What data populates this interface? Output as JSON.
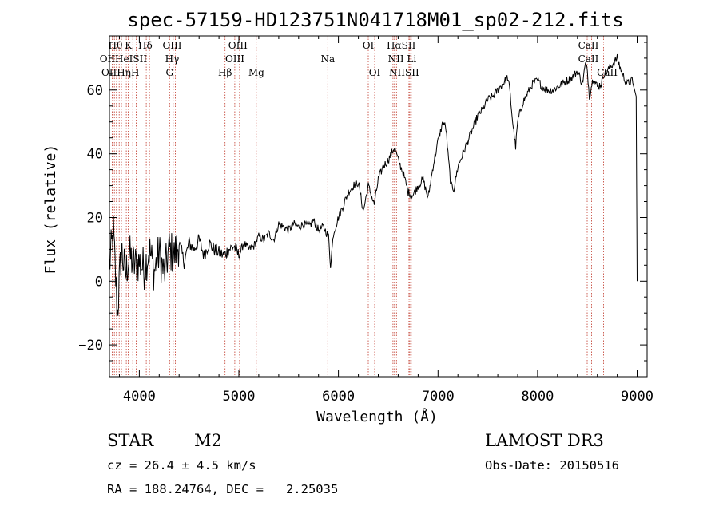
{
  "chart_data": {
    "type": "line",
    "title": "spec-57159-HD123751N041718M01_sp02-212.fits",
    "xlabel": "Wavelength (Å)",
    "ylabel": "Flux (relative)",
    "xlim": [
      3700,
      9100
    ],
    "ylim": [
      -30,
      77
    ],
    "xticks": [
      4000,
      5000,
      6000,
      7000,
      8000,
      9000
    ],
    "yticks": [
      -20,
      0,
      20,
      40,
      60
    ],
    "grid": false,
    "series": [
      {
        "name": "flux",
        "x": [
          3700,
          3740,
          3780,
          3820,
          3860,
          3900,
          3950,
          4000,
          4050,
          4100,
          4150,
          4200,
          4250,
          4300,
          4350,
          4400,
          4450,
          4500,
          4550,
          4600,
          4650,
          4700,
          4750,
          4800,
          4850,
          4900,
          4950,
          5000,
          5050,
          5100,
          5150,
          5200,
          5250,
          5300,
          5350,
          5400,
          5450,
          5500,
          5550,
          5600,
          5650,
          5700,
          5750,
          5800,
          5850,
          5900,
          5920,
          5950,
          6000,
          6050,
          6100,
          6150,
          6200,
          6250,
          6300,
          6330,
          6360,
          6400,
          6450,
          6500,
          6530,
          6563,
          6600,
          6650,
          6700,
          6750,
          6800,
          6850,
          6900,
          6950,
          7000,
          7050,
          7080,
          7100,
          7130,
          7160,
          7200,
          7250,
          7300,
          7350,
          7400,
          7450,
          7500,
          7550,
          7600,
          7650,
          7700,
          7720,
          7750,
          7780,
          7800,
          7850,
          7900,
          7950,
          8000,
          8050,
          8100,
          8150,
          8200,
          8250,
          8300,
          8350,
          8400,
          8450,
          8480,
          8500,
          8520,
          8545,
          8560,
          8600,
          8640,
          8662,
          8700,
          8750,
          8800,
          8850,
          8900,
          8950,
          8990,
          9000
        ],
        "y": [
          5,
          15,
          -10,
          10,
          2,
          8,
          5,
          6,
          4,
          10,
          3,
          9,
          2,
          10,
          8,
          12,
          6,
          12,
          10,
          13,
          8,
          12,
          10,
          9,
          8,
          10,
          11,
          8,
          12,
          10,
          11,
          14,
          13,
          15,
          13,
          18,
          17,
          16,
          18,
          17,
          18,
          17,
          19,
          16,
          17,
          14,
          5,
          15,
          20,
          24,
          28,
          30,
          31,
          22,
          30,
          27,
          24,
          32,
          36,
          38,
          40,
          42,
          38,
          34,
          28,
          27,
          30,
          32,
          26,
          36,
          44,
          50,
          48,
          40,
          30,
          29,
          36,
          40,
          44,
          48,
          52,
          54,
          57,
          58,
          60,
          62,
          64,
          60,
          50,
          42,
          50,
          56,
          59,
          62,
          63,
          61,
          60,
          60,
          61,
          62,
          63,
          64,
          66,
          62,
          68,
          66,
          58,
          62,
          64,
          61,
          62,
          65,
          66,
          68,
          70,
          65,
          62,
          63,
          58,
          0
        ]
      }
    ],
    "lines": [
      {
        "wl": 3727,
        "top": "OII"
      },
      {
        "wl": 3750,
        "top": "Hθ"
      },
      {
        "wl": 3771,
        "top": "Hη"
      },
      {
        "wl": 3798,
        "top": "Hη"
      },
      {
        "wl": 3820,
        "top": "HeI"
      },
      {
        "wl": 3869,
        "top": "K"
      },
      {
        "wl": 3889,
        "top": "HeI"
      },
      {
        "wl": 3934,
        "top": "K"
      },
      {
        "wl": 3968,
        "top": "H"
      },
      {
        "wl": 4102,
        "top": "Hδ"
      },
      {
        "wl": 4070,
        "top": "SII"
      },
      {
        "wl": 4304,
        "top": "G"
      },
      {
        "wl": 4340,
        "top": "Hγ"
      },
      {
        "wl": 4363,
        "top": "OIII"
      },
      {
        "wl": 4861,
        "top": "Hβ"
      },
      {
        "wl": 4959,
        "top": "OIII"
      },
      {
        "wl": 5007,
        "top": "OIII"
      },
      {
        "wl": 5175,
        "top": "Mg"
      },
      {
        "wl": 5893,
        "top": "Na"
      },
      {
        "wl": 6300,
        "top": "OI"
      },
      {
        "wl": 6364,
        "top": "OI"
      },
      {
        "wl": 6548,
        "top": "NII"
      },
      {
        "wl": 6563,
        "top": "Hα"
      },
      {
        "wl": 6583,
        "top": "NII"
      },
      {
        "wl": 6708,
        "top": "Li"
      },
      {
        "wl": 6717,
        "top": "SII"
      },
      {
        "wl": 6731,
        "top": "SII"
      },
      {
        "wl": 8498,
        "top": "CaII"
      },
      {
        "wl": 8542,
        "top": "CaII"
      },
      {
        "wl": 8662,
        "top": "CaII"
      }
    ],
    "line_labels": [
      {
        "text": "Hθ",
        "wl": 3760,
        "row": 1
      },
      {
        "text": "K",
        "wl": 3890,
        "row": 1
      },
      {
        "text": "Hδ",
        "wl": 4060,
        "row": 1
      },
      {
        "text": "OIII",
        "wl": 4330,
        "row": 1
      },
      {
        "text": "OIII",
        "wl": 4990,
        "row": 1
      },
      {
        "text": "OI",
        "wl": 6300,
        "row": 1
      },
      {
        "text": "HαSII",
        "wl": 6630,
        "row": 1
      },
      {
        "text": "CaII",
        "wl": 8510,
        "row": 1
      },
      {
        "text": "OIIHeISII",
        "wl": 3840,
        "row": 2
      },
      {
        "text": "Hγ",
        "wl": 4330,
        "row": 2
      },
      {
        "text": "OIII",
        "wl": 4960,
        "row": 2
      },
      {
        "text": "Na",
        "wl": 5893,
        "row": 2
      },
      {
        "text": "NII Li",
        "wl": 6640,
        "row": 2
      },
      {
        "text": "CaII",
        "wl": 8510,
        "row": 2
      },
      {
        "text": "OIIHηH",
        "wl": 3810,
        "row": 3
      },
      {
        "text": "G",
        "wl": 4304,
        "row": 3
      },
      {
        "text": "Hβ",
        "wl": 4861,
        "row": 3
      },
      {
        "text": "Mg",
        "wl": 5175,
        "row": 3
      },
      {
        "text": "OI",
        "wl": 6364,
        "row": 3
      },
      {
        "text": "NIISII",
        "wl": 6660,
        "row": 3
      },
      {
        "text": "CaII",
        "wl": 8700,
        "row": 3
      }
    ]
  },
  "info": {
    "object_type": "STAR",
    "subclass": "M2",
    "survey": "LAMOST DR3",
    "cz": "cz = 26.4 ± 4.5 km/s",
    "obs_date": "Obs-Date: 20150516",
    "coords": "RA = 188.24764, DEC =   2.25035"
  },
  "colors": {
    "line_marker": "#c0392b",
    "spectrum": "#000000"
  }
}
